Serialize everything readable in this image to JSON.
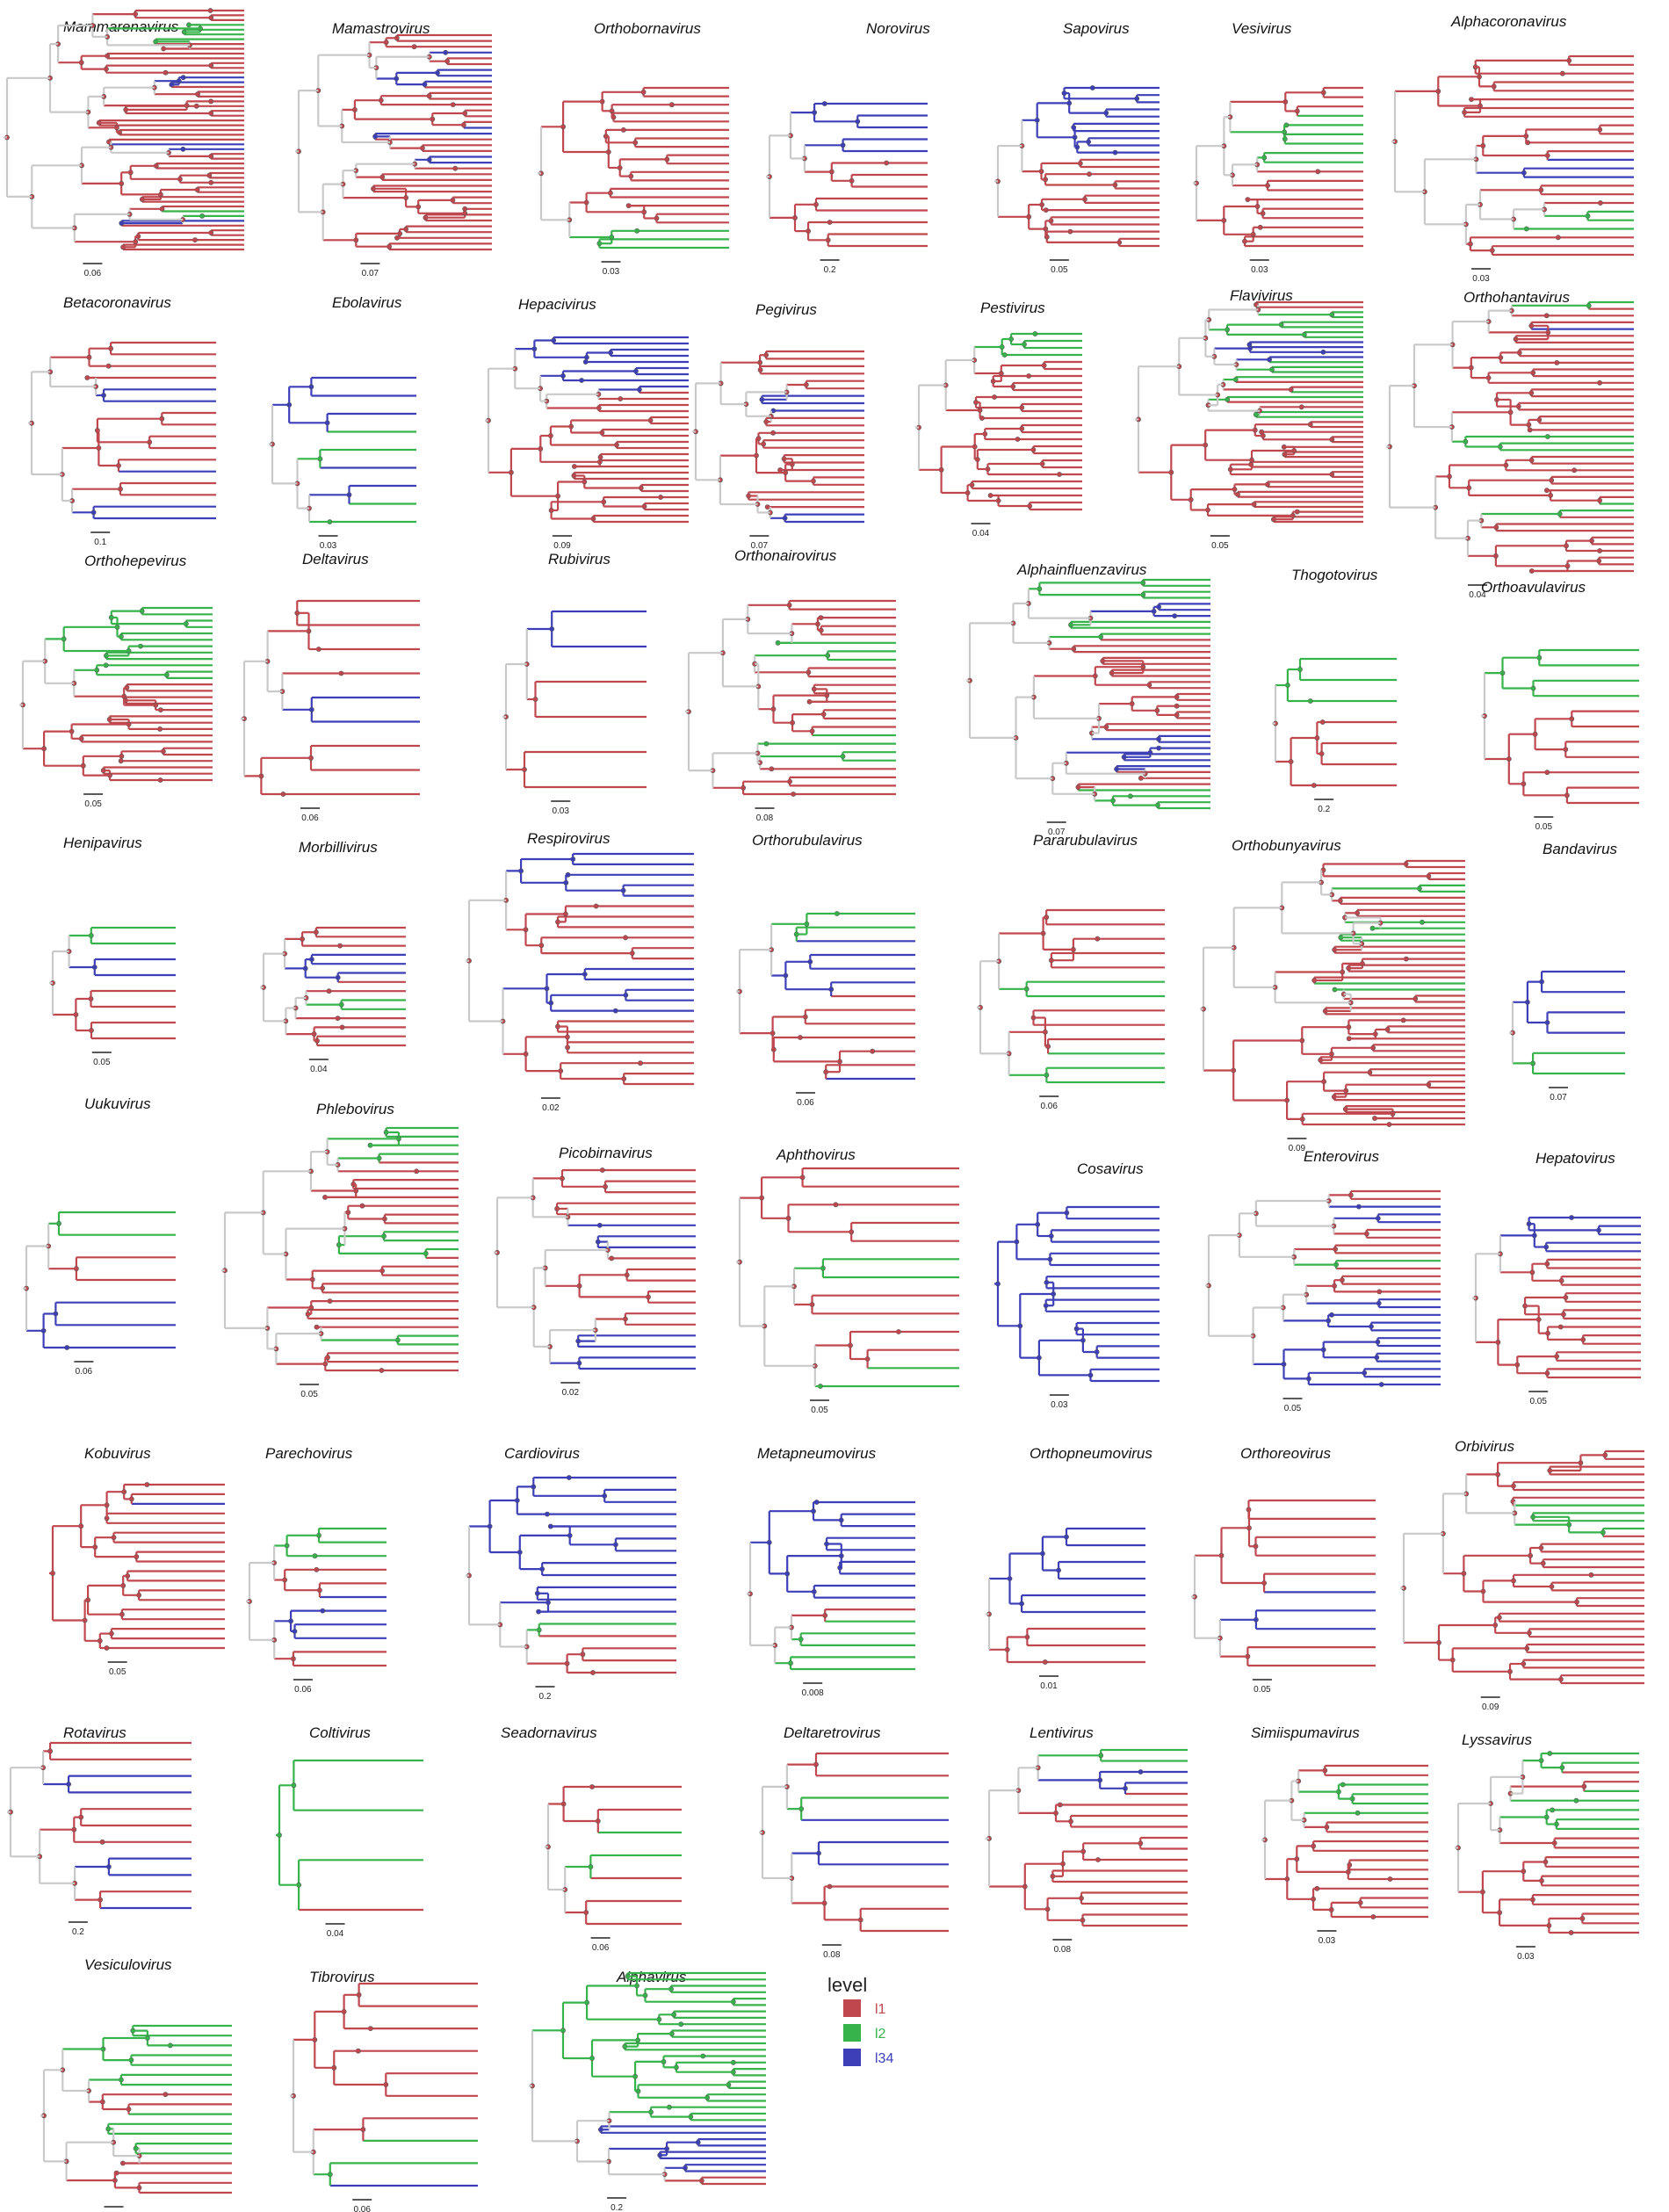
{
  "colors": {
    "l1": "#c0474e",
    "l2": "#36b34a",
    "l34": "#3c3fb8",
    "root": "#c9c9c9"
  },
  "legend": {
    "title": "level",
    "items": [
      {
        "key": "l1",
        "label": "l1",
        "color": "#c0474e"
      },
      {
        "key": "l2",
        "label": "l2",
        "color": "#36b34a"
      },
      {
        "key": "l34",
        "label": "l34",
        "color": "#3c3fb8"
      }
    ]
  },
  "panels": [
    {
      "id": "mammarenavirus",
      "name": "Mammarenavirus",
      "scale": "0.06",
      "tips": "111222211111113311111111111133111111111111223111111"
    },
    {
      "id": "mamastrovirus",
      "name": "Mamastrovirus",
      "scale": "0.07",
      "tips": "11131133311111113311133111111111111111"
    },
    {
      "id": "orthobornavirus",
      "name": "Orthobornavirus",
      "scale": "0.03",
      "tips": "11111111111111111222"
    },
    {
      "id": "norovirus",
      "name": "Norovirus",
      "scale": "0.2",
      "tips": "3333311111111"
    },
    {
      "id": "sapovirus",
      "name": "Sapovirus",
      "scale": "0.05",
      "tips": "33333333331111111111111"
    },
    {
      "id": "vesivirus",
      "name": "Vesivirus",
      "scale": "0.03",
      "tips": "111222222111111111"
    },
    {
      "id": "alphacoronavirus",
      "name": "Alphacoronavirus",
      "scale": "0.03",
      "tips": "111111111111333111222111"
    },
    {
      "id": "betacoronavirus",
      "name": "Betacoronavirus",
      "scale": "0.1",
      "tips": "1111331111131133"
    },
    {
      "id": "ebolavirus",
      "name": "Ebolavirus",
      "scale": "0.03",
      "tips": "333223322"
    },
    {
      "id": "hepacivirus",
      "name": "Hepacivirus",
      "scale": "0.09",
      "tips": "3333333331111111111111111111111"
    },
    {
      "id": "pegivirus",
      "name": "Pegivirus",
      "scale": "0.07",
      "tips": "111111333111111111111133"
    },
    {
      "id": "pestivirus",
      "name": "Pestivirus",
      "scale": "0.04",
      "tips": "22221111111111111111111111"
    },
    {
      "id": "flavivirus",
      "name": "Flavivirus",
      "scale": "0.05",
      "tips": "112222223333222211221122111111111111111111111"
    },
    {
      "id": "orthohantavirus",
      "name": "Orthohantavirus",
      "scale": "0.04",
      "tips": "21113111111111111111222111111122111111111"
    },
    {
      "id": "orthohepevirus",
      "name": "Orthohepevirus",
      "scale": "0.05",
      "tips": "2222222222221111111111111111"
    },
    {
      "id": "deltavirus",
      "name": "Deltavirus",
      "scale": "0.06",
      "tips": "111133111"
    },
    {
      "id": "rubivirus",
      "name": "Rubivirus",
      "scale": "0.03",
      "tips": "331111"
    },
    {
      "id": "orthonairovirus",
      "name": "Orthonairovirus",
      "scale": "0.08",
      "tips": "111112221111111122221111"
    },
    {
      "id": "alphainfluenzavirus",
      "name": "Alphainfluenzavirus",
      "scale": "0.07",
      "tips": "222233322211111111111111113333331112222"
    },
    {
      "id": "thogotovirus",
      "name": "Thogotovirus",
      "scale": "0.2",
      "tips": "2221111"
    },
    {
      "id": "orthoavulavirus",
      "name": "Orthoavulavirus",
      "scale": "0.05",
      "tips": "22221111111"
    },
    {
      "id": "henipavirus",
      "name": "Henipavirus",
      "scale": "0.05",
      "tips": "22331111"
    },
    {
      "id": "morbillivirus",
      "name": "Morbillivirus",
      "scale": "0.04",
      "tips": "11133311221111"
    },
    {
      "id": "respirovirus",
      "name": "Respirovirus",
      "scale": "0.02",
      "tips": "33333111111333331111111"
    },
    {
      "id": "orthorubulavirus",
      "name": "Orthorubulavirus",
      "scale": "0.06",
      "tips": "2233331111113"
    },
    {
      "id": "pararubulavirus",
      "name": "Pararubulavirus",
      "scale": "0.06",
      "tips": "1111122111222"
    },
    {
      "id": "orthobunyavirus",
      "name": "Orthobunyavirus",
      "scale": "0.09",
      "tips": "11112211112222111111221111111111111111111111"
    },
    {
      "id": "bandavirus",
      "name": "Bandavirus",
      "scale": "0.07",
      "tips": "333322"
    },
    {
      "id": "uukuvirus",
      "name": "Uukuvirus",
      "scale": "0.06",
      "tips": "2211333"
    },
    {
      "id": "phlebovirus",
      "name": "Phlebovirus",
      "scale": "0.05",
      "tips": "22221111111122211111111122111"
    },
    {
      "id": "picobirnavirus",
      "name": "Picobirnavirus",
      "scale": "0.02",
      "tips": "1111133311111113333"
    },
    {
      "id": "aphthovirus",
      "name": "Aphthovirus",
      "scale": "0.05",
      "tips": "1111122111122"
    },
    {
      "id": "cosavirus",
      "name": "Cosavirus",
      "scale": "0.03",
      "tips": "3333333333333333"
    },
    {
      "id": "enterovirus",
      "name": "Enterovirus",
      "scale": "0.05",
      "tips": "11333111121111333333333333"
    },
    {
      "id": "hepatovirus",
      "name": "Hepatovirus",
      "scale": "0.05",
      "tips": "33333111111111111111"
    },
    {
      "id": "kobuvirus",
      "name": "Kobuvirus",
      "scale": "0.05",
      "tips": "113111111111111111"
    },
    {
      "id": "parechovirus",
      "name": "Parechovirus",
      "scale": "0.06",
      "tips": "22211333311"
    },
    {
      "id": "cardiovirus",
      "name": "Cardiovirus",
      "scale": "0.2",
      "tips": "33333333333321111"
    },
    {
      "id": "metapneumovirus",
      "name": "Metapneumovirus",
      "scale": "0.008",
      "tips": "333333333122222"
    },
    {
      "id": "orthopneumovirus",
      "name": "Orthopneumovirus",
      "scale": "0.01",
      "tips": "333333111"
    },
    {
      "id": "orthoreovirus",
      "name": "Orthoreovirus",
      "scale": "0.05",
      "tips": "1111133311"
    },
    {
      "id": "orbivirus",
      "name": "Orbivirus",
      "scale": "0.09",
      "tips": "1111111222211111111111111111111"
    },
    {
      "id": "rotavirus",
      "name": "Rotavirus",
      "scale": "0.2",
      "tips": "11331113313"
    },
    {
      "id": "coltivirus",
      "name": "Coltivirus",
      "scale": "0.04",
      "tips": "2221"
    },
    {
      "id": "seadornavirus",
      "name": "Seadornavirus",
      "scale": "0.06",
      "tips": "1122111"
    },
    {
      "id": "deltaretrovirus",
      "name": "Deltaretrovirus",
      "scale": "0.08",
      "tips": "112333111"
    },
    {
      "id": "lentivirus",
      "name": "Lentivirus",
      "scale": "0.08",
      "tips": "22331111111111111"
    },
    {
      "id": "simiispumavirus",
      "name": "Simiispumavirus",
      "scale": "0.03",
      "tips": "11222211111111111"
    },
    {
      "id": "lyssavirus",
      "name": "Lyssavirus",
      "scale": "0.03",
      "tips": "22112222211111111111"
    },
    {
      "id": "vesiculovirus",
      "name": "Vesiculovirus",
      "scale": "0.05",
      "tips": "222222211222221111"
    },
    {
      "id": "tibrovirus",
      "name": "Tibrovirus",
      "scale": "0.06",
      "tips": "1111111223"
    },
    {
      "id": "alphavirus",
      "name": "Alphavirus",
      "scale": "0.2",
      "tips": "2222222222222222222222223333333311"
    }
  ]
}
